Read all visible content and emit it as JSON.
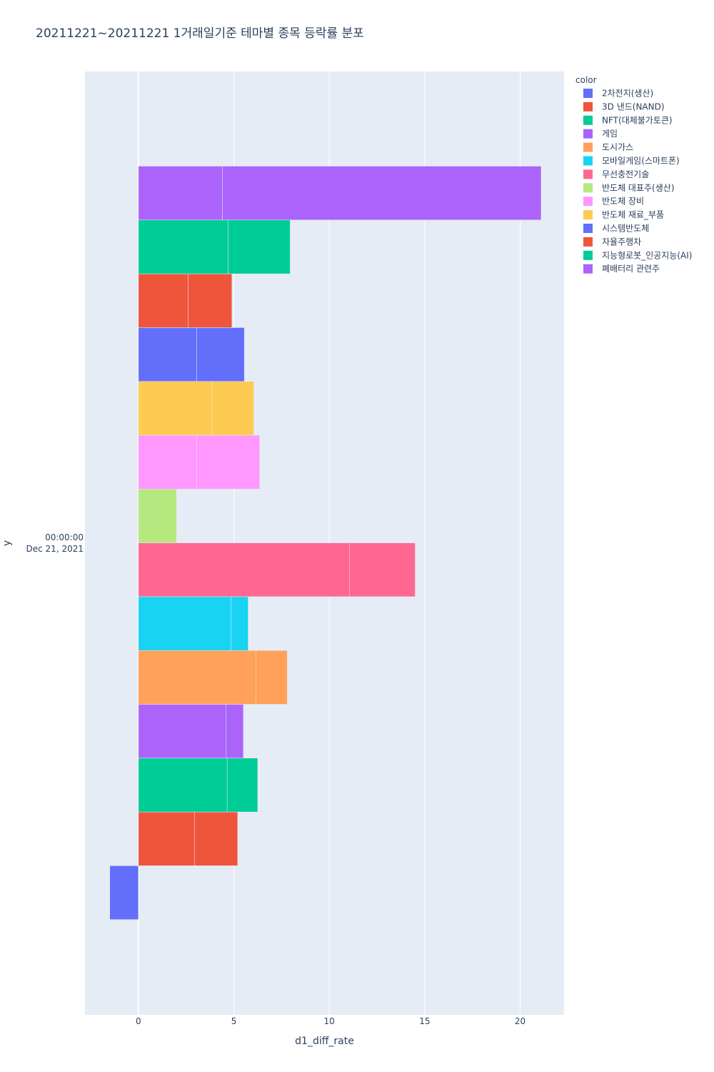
{
  "chart_data": {
    "type": "bar",
    "orientation": "horizontal",
    "barmode": "stack",
    "title": "20211221~20211221 1거래일기준 테마별 종목 등락률 분포",
    "xlabel": "d1_diff_rate",
    "ylabel": "y",
    "y_category_line1": "00:00:00",
    "y_category_line2": "Dec 21, 2021",
    "xlim": [
      -2.8,
      22.3
    ],
    "xticks": [
      0,
      5,
      10,
      15,
      20
    ],
    "xtick_labels": [
      "0",
      "5",
      "10",
      "15",
      "20"
    ],
    "legend_title": "color",
    "legend_position": "top-right",
    "grid": true,
    "series": [
      {
        "name": "2차전지(생산)",
        "color": "#636efa",
        "segments": [
          [
            -1.5,
            0
          ]
        ]
      },
      {
        "name": "3D 낸드(NAND)",
        "color": "#EF553B",
        "segments": [
          [
            0,
            2.95
          ],
          [
            2.95,
            5.2
          ]
        ]
      },
      {
        "name": "NFT(대체불가토큰)",
        "color": "#00cc96",
        "segments": [
          [
            0,
            4.65
          ],
          [
            4.65,
            6.25
          ]
        ]
      },
      {
        "name": "게임",
        "color": "#ab63fa",
        "segments": [
          [
            0,
            4.6
          ],
          [
            4.6,
            5.5
          ]
        ]
      },
      {
        "name": "도시가스",
        "color": "#FFA15A",
        "segments": [
          [
            0,
            6.15
          ],
          [
            6.15,
            7.8
          ]
        ]
      },
      {
        "name": "모바일게임(스마트폰)",
        "color": "#19d3f3",
        "segments": [
          [
            0,
            4.85
          ],
          [
            4.85,
            5.75
          ]
        ]
      },
      {
        "name": "무선충전기술",
        "color": "#FF6692",
        "segments": [
          [
            0,
            11.05
          ],
          [
            11.05,
            14.5
          ]
        ]
      },
      {
        "name": "반도체 대표주(생산)",
        "color": "#B6E880",
        "segments": [
          [
            0,
            2.0
          ]
        ]
      },
      {
        "name": "반도체 장비",
        "color": "#FF97FF",
        "segments": [
          [
            0,
            3.05
          ],
          [
            3.05,
            6.35
          ]
        ]
      },
      {
        "name": "반도체 재료_부품",
        "color": "#FECB52",
        "segments": [
          [
            0,
            3.85
          ],
          [
            3.85,
            6.05
          ]
        ]
      },
      {
        "name": "시스템반도체",
        "color": "#636efa",
        "segments": [
          [
            0,
            3.05
          ],
          [
            3.05,
            5.55
          ]
        ]
      },
      {
        "name": "자율주행차",
        "color": "#EF553B",
        "segments": [
          [
            0,
            2.6
          ],
          [
            2.6,
            4.9
          ]
        ]
      },
      {
        "name": "지능형로봇_인공지능(AI)",
        "color": "#00cc96",
        "segments": [
          [
            0,
            4.7
          ],
          [
            4.7,
            7.95
          ]
        ]
      },
      {
        "name": "폐배터리 관련주",
        "color": "#ab63fa",
        "segments": [
          [
            0,
            4.4
          ],
          [
            4.4,
            21.1
          ]
        ]
      }
    ]
  },
  "style": {
    "plot_background": "#e5ecf6",
    "grid_color": "#ffffff",
    "paper_background": "#ffffff"
  }
}
